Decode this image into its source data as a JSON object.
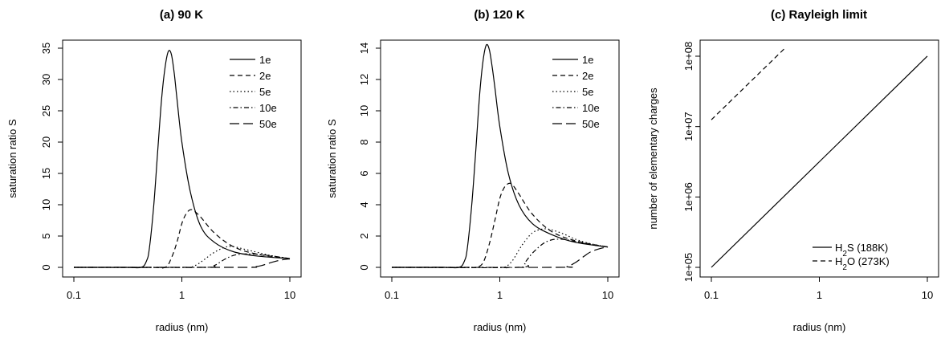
{
  "chart_data": [
    {
      "type": "line",
      "title": "(a) 90 K",
      "xlabel": "radius (nm)",
      "ylabel": "saturation ratio S",
      "xscale": "log",
      "xlim": [
        0.1,
        10
      ],
      "ylim": [
        0,
        35
      ],
      "xticks": [
        0.1,
        1,
        10
      ],
      "xtick_labels": [
        "0.1",
        "1",
        "10"
      ],
      "yticks": [
        0,
        5,
        10,
        15,
        20,
        25,
        30,
        35
      ],
      "ytick_labels": [
        "0",
        "5",
        "10",
        "15",
        "20",
        "25",
        "30",
        "35"
      ],
      "legend_position": "top-right",
      "grid": false,
      "series": [
        {
          "name": "1e",
          "dash": "solid",
          "x": [
            0.1,
            0.3,
            0.42,
            0.47,
            0.5,
            0.55,
            0.6,
            0.65,
            0.7,
            0.75,
            0.8,
            0.85,
            0.9,
            1.0,
            1.2,
            1.5,
            2,
            3,
            5,
            10
          ],
          "y": [
            0,
            0,
            0,
            1,
            3,
            10,
            19,
            27,
            32,
            34.5,
            34,
            31,
            27,
            20,
            12,
            6.5,
            4,
            2.5,
            1.8,
            1.4
          ]
        },
        {
          "name": "2e",
          "dash": "dashed",
          "x": [
            0.1,
            0.5,
            0.7,
            0.8,
            0.9,
            1.0,
            1.1,
            1.2,
            1.3,
            1.5,
            2,
            3,
            5,
            10
          ],
          "y": [
            0,
            0,
            0,
            1.5,
            4,
            7,
            8.6,
            9.2,
            9,
            8,
            5.5,
            3.3,
            2.1,
            1.4
          ]
        },
        {
          "name": "5e",
          "dash": "dotted",
          "x": [
            0.1,
            1,
            1.2,
            1.4,
            1.6,
            2,
            2.5,
            3,
            4,
            5,
            7,
            10
          ],
          "y": [
            0,
            0,
            0,
            0.5,
            1.2,
            2.4,
            3.2,
            3.3,
            2.8,
            2.4,
            1.8,
            1.4
          ]
        },
        {
          "name": "10e",
          "dash": "dotdash",
          "x": [
            0.1,
            1.6,
            2,
            2.5,
            3,
            3.5,
            4,
            5,
            7,
            10
          ],
          "y": [
            0,
            0,
            0.3,
            1.3,
            1.9,
            2.1,
            2.15,
            2.1,
            1.8,
            1.4
          ]
        },
        {
          "name": "50e",
          "dash": "longdash",
          "x": [
            0.1,
            3.5,
            4.5,
            5.5,
            6.5,
            7.5,
            8.5,
            10
          ],
          "y": [
            0,
            0,
            0.05,
            0.3,
            0.7,
            1.0,
            1.2,
            1.35
          ]
        }
      ]
    },
    {
      "type": "line",
      "title": "(b) 120 K",
      "xlabel": "radius (nm)",
      "ylabel": "saturation ratio S",
      "xscale": "log",
      "xlim": [
        0.1,
        10
      ],
      "ylim": [
        0,
        14
      ],
      "xticks": [
        0.1,
        1,
        10
      ],
      "xtick_labels": [
        "0.1",
        "1",
        "10"
      ],
      "yticks": [
        0,
        2,
        4,
        6,
        8,
        10,
        12,
        14
      ],
      "ytick_labels": [
        "0",
        "2",
        "4",
        "6",
        "8",
        "10",
        "12",
        "14"
      ],
      "legend_position": "top-right",
      "grid": false,
      "series": [
        {
          "name": "1e",
          "dash": "solid",
          "x": [
            0.1,
            0.3,
            0.42,
            0.47,
            0.5,
            0.55,
            0.6,
            0.65,
            0.7,
            0.75,
            0.8,
            0.85,
            0.9,
            1.0,
            1.2,
            1.5,
            2,
            3,
            5,
            10
          ],
          "y": [
            0,
            0,
            0,
            0.4,
            1.2,
            4,
            7.5,
            11,
            13.2,
            14.2,
            13.9,
            12.8,
            11.5,
            9,
            6,
            4,
            2.8,
            2.1,
            1.6,
            1.3
          ]
        },
        {
          "name": "2e",
          "dash": "dashed",
          "x": [
            0.1,
            0.5,
            0.6,
            0.7,
            0.8,
            0.9,
            1.0,
            1.1,
            1.2,
            1.3,
            1.5,
            2,
            3,
            5,
            10
          ],
          "y": [
            0,
            0,
            0,
            0.3,
            1.5,
            3,
            4.4,
            5.1,
            5.35,
            5.3,
            4.7,
            3.4,
            2.3,
            1.7,
            1.3
          ]
        },
        {
          "name": "5e",
          "dash": "dotted",
          "x": [
            0.1,
            0.95,
            1.1,
            1.3,
            1.6,
            2,
            2.5,
            3,
            4,
            5,
            7,
            10
          ],
          "y": [
            0,
            0,
            0,
            0.4,
            1.4,
            2.2,
            2.45,
            2.4,
            2.1,
            1.8,
            1.5,
            1.3
          ]
        },
        {
          "name": "10e",
          "dash": "dotdash",
          "x": [
            0.1,
            1.45,
            1.7,
            2,
            2.5,
            3,
            3.5,
            4,
            5,
            7,
            10
          ],
          "y": [
            0,
            0,
            0.3,
            0.9,
            1.5,
            1.75,
            1.8,
            1.78,
            1.65,
            1.45,
            1.3
          ]
        },
        {
          "name": "50e",
          "dash": "longdash",
          "x": [
            0.1,
            3.4,
            4.2,
            5,
            6,
            7,
            8.5,
            10
          ],
          "y": [
            0,
            0,
            0.05,
            0.3,
            0.7,
            1.0,
            1.2,
            1.3
          ]
        }
      ]
    },
    {
      "type": "line",
      "title": "(c) Rayleigh limit",
      "xlabel": "radius (nm)",
      "ylabel": "number of elementary charges",
      "xscale": "log",
      "yscale": "log",
      "xlim": [
        0.1,
        10
      ],
      "ylim": [
        100000,
        130000000
      ],
      "xticks": [
        0.1,
        1,
        10
      ],
      "xtick_labels": [
        "0.1",
        "1",
        "10"
      ],
      "yticks": [
        100000,
        1000000,
        10000000,
        100000000
      ],
      "ytick_labels": [
        "1e+05",
        "1e+06",
        "1e+07",
        "1e+08"
      ],
      "legend_position": "bottom-right",
      "grid": false,
      "series": [
        {
          "name": "H₂S (188K)",
          "label_main": "H",
          "label_sub": "2",
          "label_rest": "S (188K)",
          "dash": "solid",
          "x": [
            0.1,
            10
          ],
          "y": [
            100000,
            100000000
          ]
        },
        {
          "name": "H₂O (273K)",
          "label_main": "H",
          "label_sub": "2",
          "label_rest": "O (273K)",
          "dash": "dashed",
          "x": [
            0.1,
            0.48
          ],
          "y": [
            12500000,
            130000000
          ]
        }
      ]
    }
  ]
}
